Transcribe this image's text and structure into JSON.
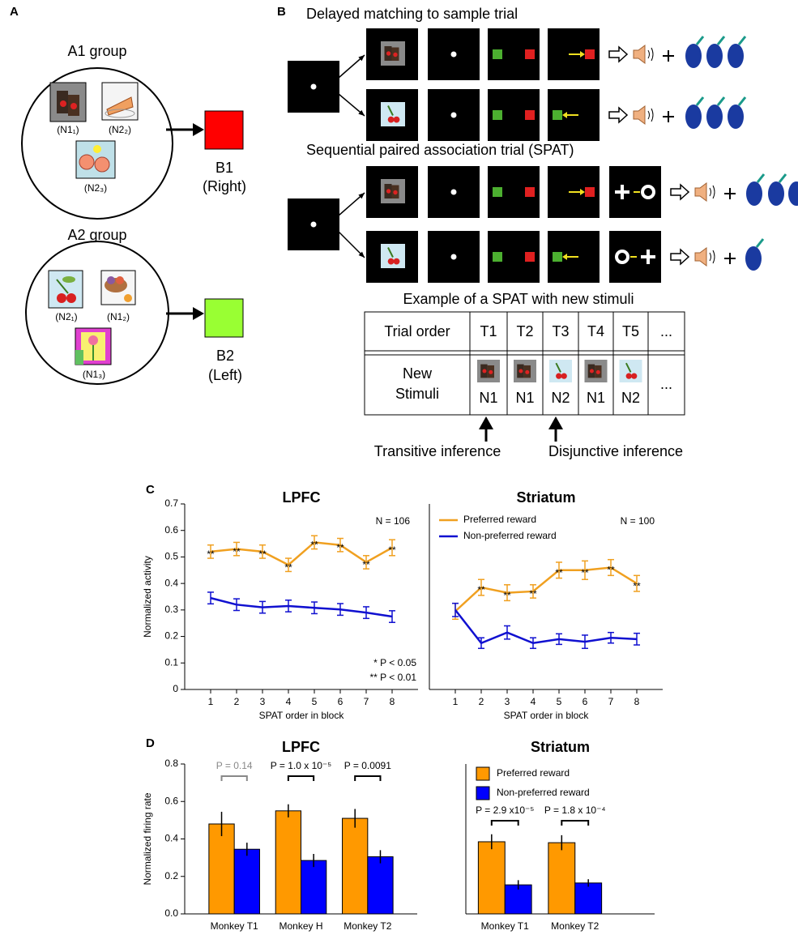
{
  "panel_labels": {
    "a": "A",
    "b": "B",
    "c": "C",
    "d": "D"
  },
  "panel_a": {
    "groups": [
      {
        "title": "A1 group",
        "items": [
          "(N1₁)",
          "(N2₂)",
          "(N2₃)"
        ],
        "target": "B1",
        "side": "(Right)",
        "color": "#ff0000"
      },
      {
        "title": "A2 group",
        "items": [
          "(N2₁)",
          "(N1₂)",
          "(N1₃)"
        ],
        "target": "B2",
        "side": "(Left)",
        "color": "#99ff33"
      }
    ]
  },
  "panel_b": {
    "dms_title": "Delayed matching to sample trial",
    "spat_title": "Sequential paired association trial (SPAT)",
    "table_title": "Example of a SPAT with new stimuli",
    "table": {
      "header": [
        "Trial order",
        "T1",
        "T2",
        "T3",
        "T4",
        "T5",
        "..."
      ],
      "row_label": [
        "New",
        "Stimuli"
      ],
      "row": [
        "N1",
        "N1",
        "N2",
        "N1",
        "N2",
        "..."
      ]
    },
    "inferences": [
      "Transitive inference",
      "Disjunctive inference"
    ]
  },
  "chart_data": [
    {
      "type": "line",
      "title": "LPFC",
      "note": "N = 106",
      "ylabel": "Normalized activity",
      "xlabel": "SPAT order in block",
      "x": [
        1,
        2,
        3,
        4,
        5,
        6,
        7,
        8
      ],
      "xlim": [
        0,
        9
      ],
      "xticks": [
        1,
        2,
        3,
        4,
        5,
        6,
        7,
        8
      ],
      "ylim": [
        0,
        0.7
      ],
      "yticks": [
        0,
        0.1,
        0.2,
        0.3,
        0.4,
        0.5,
        0.6,
        0.7
      ],
      "significance": [
        "* P < 0.05",
        "** P < 0.01"
      ],
      "series": [
        {
          "color": "#f0a020",
          "values": [
            0.52,
            0.53,
            0.52,
            0.47,
            0.555,
            0.545,
            0.48,
            0.535
          ],
          "errors": [
            0.025,
            0.025,
            0.025,
            0.025,
            0.025,
            0.025,
            0.025,
            0.03
          ],
          "markers": [
            "**",
            "**",
            "**",
            "**",
            "**",
            "**",
            "**",
            "**"
          ]
        },
        {
          "color": "#1010d0",
          "values": [
            0.345,
            0.32,
            0.31,
            0.315,
            0.308,
            0.302,
            0.29,
            0.275
          ],
          "errors": [
            0.022,
            0.022,
            0.022,
            0.022,
            0.022,
            0.022,
            0.022,
            0.022
          ]
        }
      ]
    },
    {
      "type": "line",
      "title": "Striatum",
      "note": "N = 100",
      "xlabel": "SPAT order in block",
      "x": [
        1,
        2,
        3,
        4,
        5,
        6,
        7,
        8
      ],
      "xlim": [
        0,
        9
      ],
      "xticks": [
        1,
        2,
        3,
        4,
        5,
        6,
        7,
        8
      ],
      "ylim": [
        0,
        0.7
      ],
      "legend": true,
      "series": [
        {
          "name": "Preferred reward",
          "color": "#f0a020",
          "values": [
            0.295,
            0.385,
            0.365,
            0.37,
            0.45,
            0.45,
            0.46,
            0.4
          ],
          "errors": [
            0.03,
            0.03,
            0.03,
            0.025,
            0.03,
            0.035,
            0.03,
            0.03
          ],
          "markers": [
            null,
            "**",
            "**",
            "**",
            "**",
            "**",
            "**",
            "**"
          ]
        },
        {
          "name": "Non-preferred reward",
          "color": "#1010d0",
          "values": [
            0.3,
            0.175,
            0.215,
            0.175,
            0.19,
            0.18,
            0.195,
            0.19
          ],
          "errors": [
            0.025,
            0.02,
            0.025,
            0.02,
            0.02,
            0.025,
            0.02,
            0.022
          ]
        }
      ]
    },
    {
      "type": "bar",
      "title": "LPFC",
      "ylabel": "Normalized firing rate",
      "categories": [
        "Monkey T1",
        "Monkey H",
        "Monkey T2"
      ],
      "ylim": [
        0,
        0.8
      ],
      "yticks": [
        {
          "value": 0,
          "label": "0.0"
        },
        0.2,
        0.4,
        0.6,
        0.8
      ],
      "comparisons": [
        {
          "label": "P = 0.14",
          "color": "#888888"
        },
        {
          "label": "P = 1.0 x 10⁻⁵",
          "color": "#000000"
        },
        {
          "label": "P = 0.0091",
          "color": "#000000"
        }
      ],
      "series": [
        {
          "color": "#ff9900",
          "values": [
            0.48,
            0.55,
            0.51
          ],
          "errors": [
            0.065,
            0.035,
            0.05
          ]
        },
        {
          "color": "#0000ff",
          "values": [
            0.345,
            0.285,
            0.305
          ],
          "errors": [
            0.035,
            0.035,
            0.035
          ]
        }
      ]
    },
    {
      "type": "bar",
      "title": "Striatum",
      "categories": [
        "Monkey T1",
        "Monkey T2"
      ],
      "ylim": [
        0,
        0.8
      ],
      "legend": true,
      "comparisons": [
        {
          "label": "P = 2.9 x10⁻⁵",
          "color": "#000000"
        },
        {
          "label": "P = 1.8 x 10⁻⁴",
          "color": "#000000"
        }
      ],
      "series": [
        {
          "name": "Preferred reward",
          "color": "#ff9900",
          "values": [
            0.385,
            0.38
          ],
          "errors": [
            0.04,
            0.04
          ]
        },
        {
          "name": "Non-preferred reward",
          "color": "#0000ff",
          "values": [
            0.155,
            0.165
          ],
          "errors": [
            0.025,
            0.02
          ]
        }
      ]
    }
  ]
}
